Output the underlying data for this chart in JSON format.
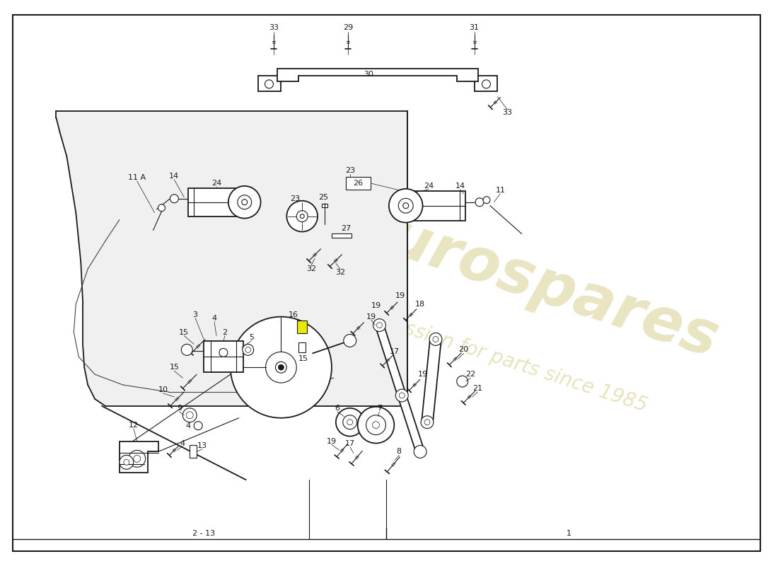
{
  "bg_color": "#ffffff",
  "line_color": "#1a1a1a",
  "wm_color": "#d4cc88",
  "fig_width": 11.0,
  "fig_height": 8.0,
  "dpi": 100,
  "panel_color": "#f5f5f5"
}
